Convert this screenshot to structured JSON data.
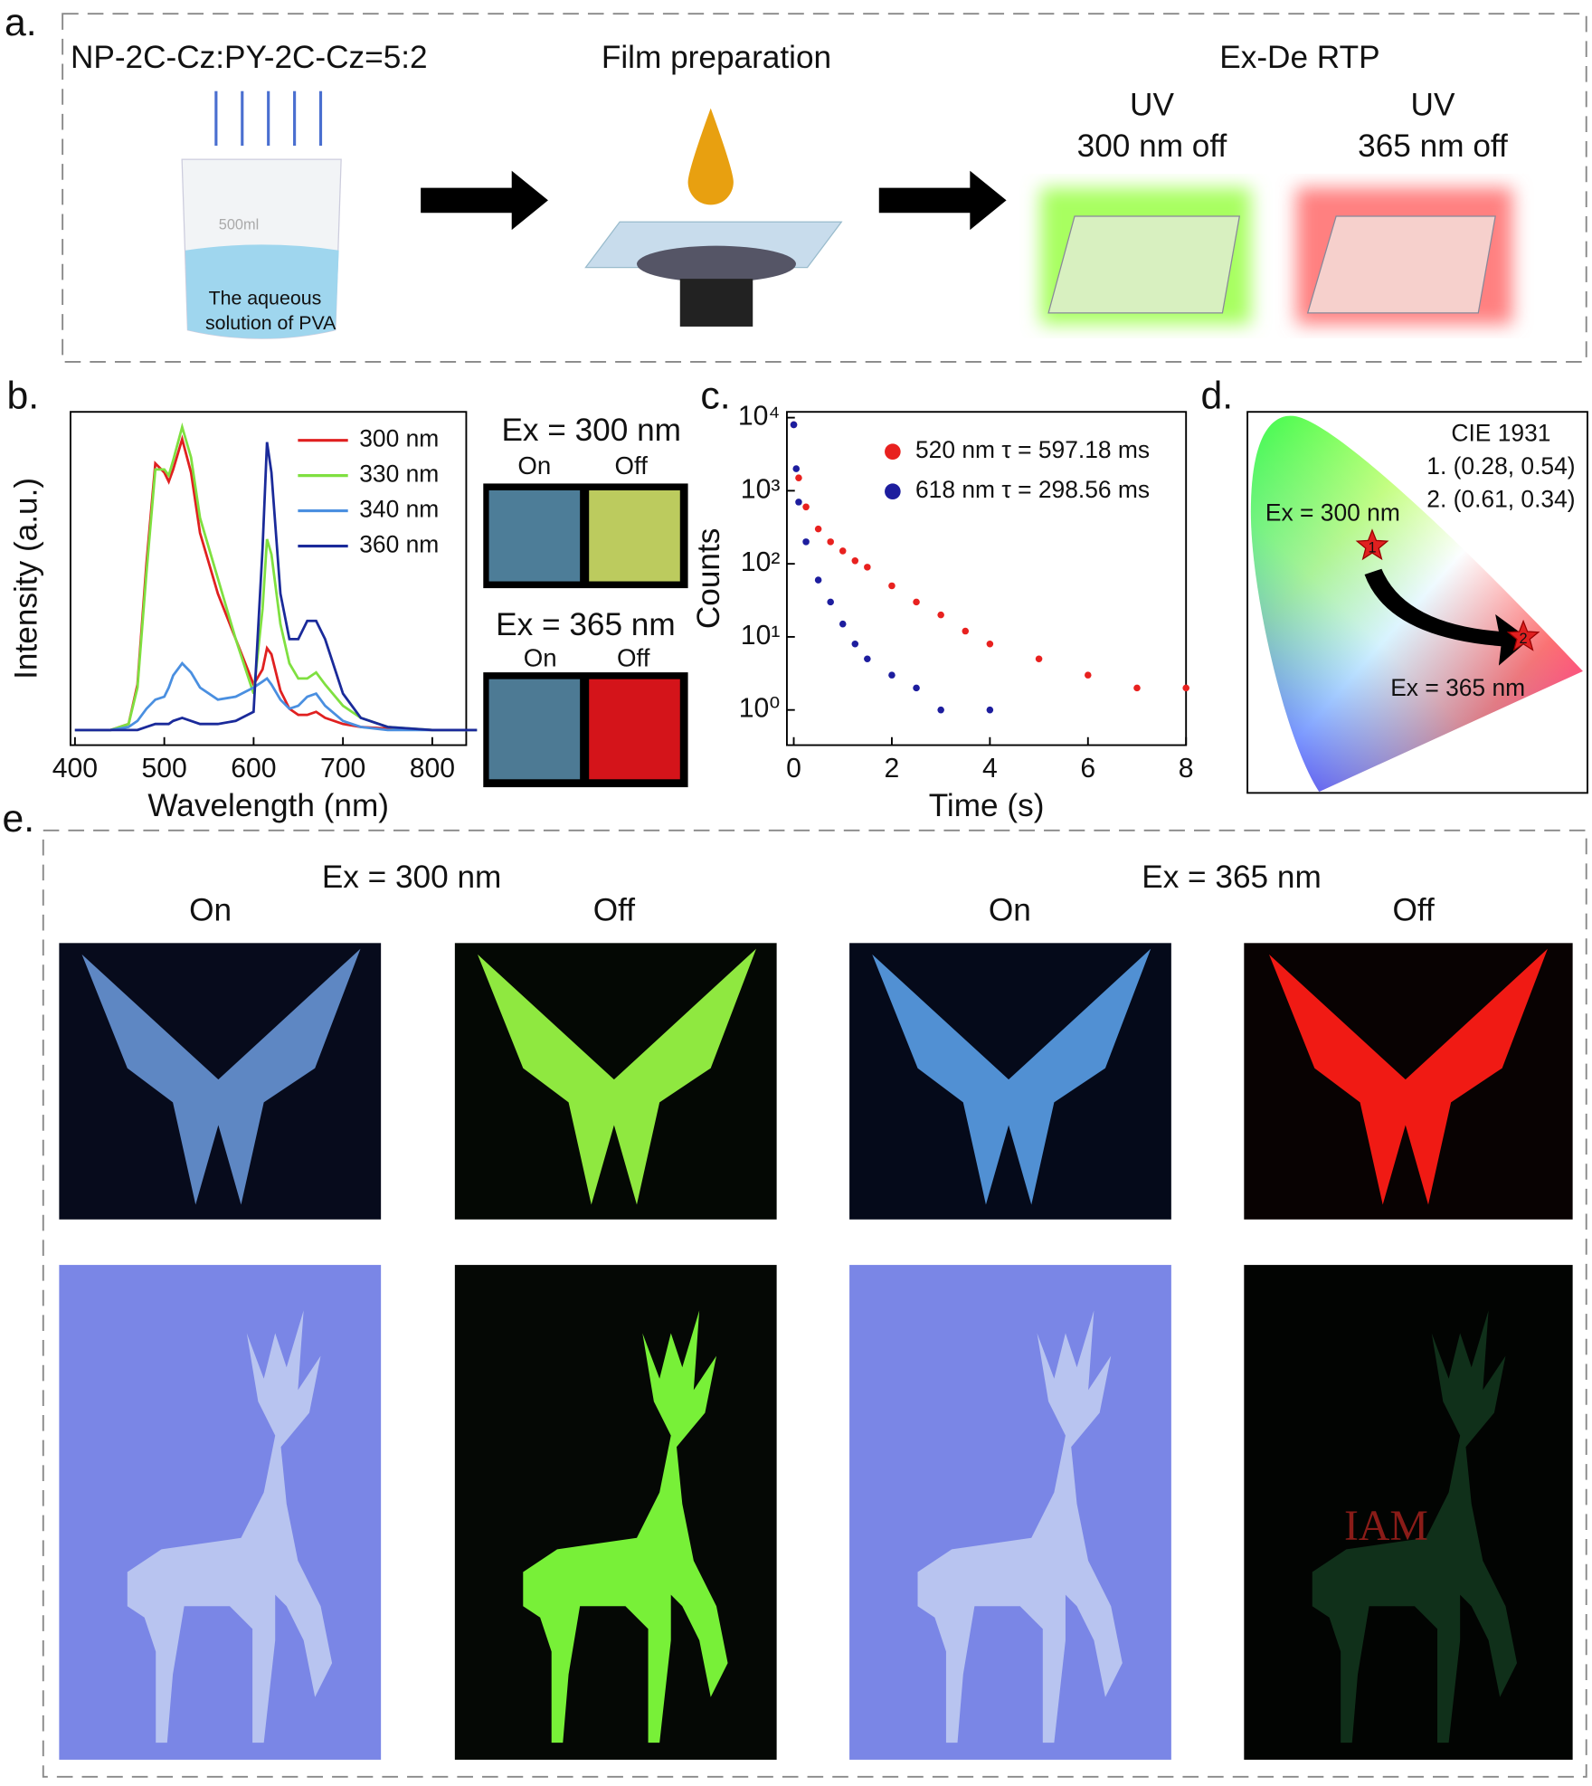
{
  "panel_a": {
    "label": "a.",
    "solution": "NP-2C-Cz:PY-2C-Cz=5:2",
    "step": "Film preparation",
    "result": "Ex-De RTP",
    "film_1": {
      "line1": "UV",
      "line2": "300 nm off"
    },
    "film_2": {
      "line1": "UV",
      "line2": "365 nm off"
    },
    "beaker_volume": "500ml",
    "beaker_text": [
      "The aqueous",
      "solution of PVA"
    ]
  },
  "chart_data": [
    {
      "type": "line",
      "panel_label": "b.",
      "xlabel": "Wavelength (nm)",
      "ylabel": "Intensity (a.u.)",
      "x": [
        400,
        440,
        460,
        470,
        480,
        490,
        500,
        505,
        510,
        520,
        530,
        540,
        560,
        580,
        600,
        610,
        615,
        620,
        630,
        640,
        650,
        660,
        670,
        680,
        700,
        720,
        750,
        800,
        850
      ],
      "xlim": [
        395,
        838
      ],
      "xticks": [
        400,
        500,
        600,
        700,
        800
      ],
      "ylim": [
        -0.05,
        1.05
      ],
      "series": [
        {
          "name": "300 nm",
          "color": "#e02020",
          "values": [
            0,
            0,
            0.02,
            0.15,
            0.55,
            0.88,
            0.85,
            0.82,
            0.86,
            0.96,
            0.85,
            0.65,
            0.45,
            0.3,
            0.15,
            0.2,
            0.27,
            0.25,
            0.13,
            0.07,
            0.05,
            0.05,
            0.06,
            0.04,
            0.02,
            0.01,
            0.005,
            0,
            0
          ]
        },
        {
          "name": "330 nm",
          "color": "#7fe040",
          "values": [
            0,
            0,
            0.02,
            0.14,
            0.52,
            0.86,
            0.86,
            0.84,
            0.89,
            1.0,
            0.9,
            0.7,
            0.5,
            0.3,
            0.12,
            0.4,
            0.63,
            0.58,
            0.35,
            0.22,
            0.17,
            0.17,
            0.19,
            0.15,
            0.08,
            0.04,
            0.01,
            0,
            0
          ]
        },
        {
          "name": "340 nm",
          "color": "#4a8fe0",
          "values": [
            0,
            0,
            0.01,
            0.03,
            0.07,
            0.1,
            0.11,
            0.14,
            0.18,
            0.22,
            0.19,
            0.14,
            0.1,
            0.11,
            0.14,
            0.16,
            0.17,
            0.15,
            0.1,
            0.07,
            0.08,
            0.11,
            0.12,
            0.08,
            0.03,
            0.01,
            0,
            0,
            0
          ]
        },
        {
          "name": "360 nm",
          "color": "#1a2a9a",
          "values": [
            0,
            0,
            0,
            0,
            0.01,
            0.02,
            0.02,
            0.02,
            0.03,
            0.04,
            0.03,
            0.02,
            0.02,
            0.03,
            0.06,
            0.6,
            0.95,
            0.85,
            0.45,
            0.3,
            0.3,
            0.36,
            0.36,
            0.3,
            0.12,
            0.04,
            0.01,
            0,
            0
          ]
        }
      ]
    },
    {
      "type": "scatter",
      "panel_label": "c.",
      "xlabel": "Time (s)",
      "ylabel": "Counts",
      "log_y": true,
      "xlim": [
        -0.14,
        8
      ],
      "xticks": [
        0,
        2,
        4,
        6,
        8
      ],
      "ylim": [
        0.33,
        12000
      ],
      "yticks": [
        {
          "value": 1,
          "label": "10⁰"
        },
        {
          "value": 10,
          "label": "10¹"
        },
        {
          "value": 100,
          "label": "10²"
        },
        {
          "value": 1000,
          "label": "10³"
        },
        {
          "value": 10000,
          "label": "10⁴"
        }
      ],
      "series": [
        {
          "name": "520 nm τ = 597.18 ms",
          "color": "#e8211f",
          "x": [
            0,
            0.1,
            0.25,
            0.5,
            0.75,
            1,
            1.25,
            1.5,
            2,
            2.5,
            3,
            3.5,
            4,
            5,
            6,
            7,
            8
          ],
          "values": [
            8000,
            1500,
            600,
            300,
            200,
            150,
            110,
            90,
            50,
            30,
            20,
            12,
            8,
            5,
            3,
            2,
            2
          ]
        },
        {
          "name": "618 nm τ = 298.56 ms",
          "color": "#1d1d9e",
          "x": [
            0,
            0.05,
            0.1,
            0.25,
            0.5,
            0.75,
            1,
            1.25,
            1.5,
            2,
            2.5,
            3,
            4
          ],
          "values": [
            8000,
            2000,
            700,
            200,
            60,
            30,
            15,
            8,
            5,
            3,
            2,
            1,
            1
          ]
        }
      ]
    },
    {
      "type": "cie",
      "panel_label": "d.",
      "xlim": [
        0,
        0.75
      ],
      "ylim": [
        0,
        0.835
      ],
      "points": [
        {
          "label": "1",
          "x": 0.28,
          "y": 0.54
        },
        {
          "label": "2",
          "x": 0.61,
          "y": 0.34
        }
      ],
      "annotations": [
        "CIE 1931",
        "1. (0.28, 0.54)",
        "2. (0.61, 0.34)",
        "Ex = 300 nm",
        "Ex = 365 nm"
      ]
    }
  ],
  "panel_b_photos": {
    "rows": [
      {
        "title": "Ex = 300 nm",
        "on": "On",
        "off": "Off"
      },
      {
        "title": "Ex = 365 nm",
        "on": "On",
        "off": "Off"
      }
    ]
  },
  "panel_e": {
    "label": "e.",
    "groups": [
      {
        "title": "Ex = 300 nm",
        "on": "On",
        "off": "Off"
      },
      {
        "title": "Ex = 365 nm",
        "on": "On",
        "off": "Off"
      }
    ],
    "watermark": "IAM"
  }
}
